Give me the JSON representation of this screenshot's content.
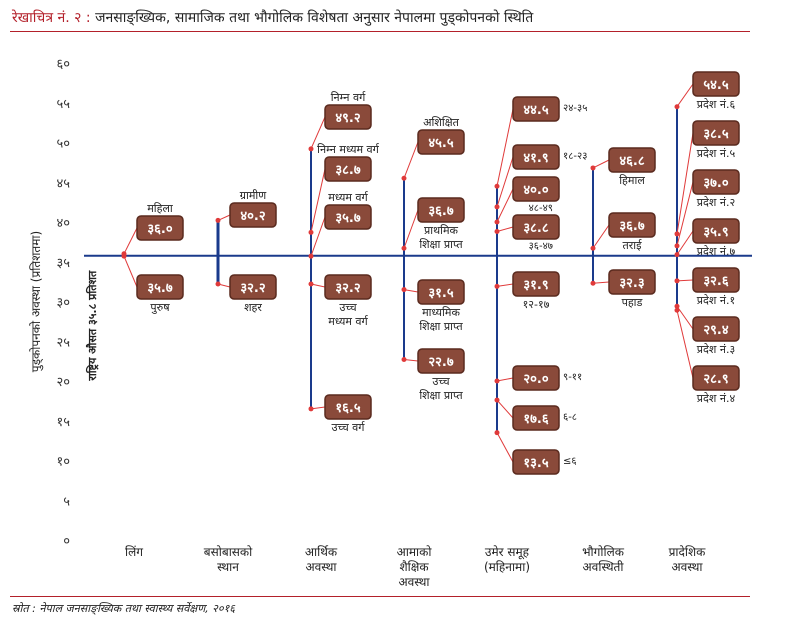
{
  "title": {
    "lead": "रेखाचित्र नं. २ :",
    "text": "जनसाङ्ख्यिक, सामाजिक तथा भौगोलिक विशेषता अनुसार नेपालमा पुड्कोपनको स्थिति"
  },
  "source": "स्रोत : नेपाल जनसाङ्ख्यिक तथा स्वास्थ्य सर्वेक्षण, २०१६",
  "colors": {
    "box": "#8a4a3a",
    "box_border": "#5a2a1e",
    "line": "#1a3a8c",
    "connector": "#e03a3a",
    "rule": "#b3202a"
  },
  "chart_data": {
    "type": "scatter",
    "ylabel": "पुड्कोपनको अवस्था (प्रतिशतमा)",
    "ylim": [
      0,
      60
    ],
    "yticks": [
      {
        "v": 0,
        "label": "०"
      },
      {
        "v": 5,
        "label": "५"
      },
      {
        "v": 10,
        "label": "१०"
      },
      {
        "v": 15,
        "label": "१५"
      },
      {
        "v": 20,
        "label": "२०"
      },
      {
        "v": 25,
        "label": "२५"
      },
      {
        "v": 30,
        "label": "३०"
      },
      {
        "v": 35,
        "label": "३५"
      },
      {
        "v": 40,
        "label": "४०"
      },
      {
        "v": 45,
        "label": "४५"
      },
      {
        "v": 50,
        "label": "५०"
      },
      {
        "v": 55,
        "label": "५५"
      },
      {
        "v": 60,
        "label": "६०"
      }
    ],
    "reference": {
      "value": 35.8,
      "label": "राष्ट्रिय औसत ३५.८ प्रतिशत"
    },
    "categories": [
      {
        "label": [
          "लिंग"
        ],
        "points": [
          {
            "value": 36.0,
            "label": "३६.०",
            "text": [
              "महिला"
            ],
            "place": "above"
          },
          {
            "value": 35.7,
            "label": "३५.७",
            "text": [
              "पुरुष"
            ],
            "place": "below"
          }
        ]
      },
      {
        "label": [
          "बसोबासको",
          "स्थान"
        ],
        "points": [
          {
            "value": 40.2,
            "label": "४०.२",
            "text": [
              "ग्रामीण"
            ],
            "place": "above"
          },
          {
            "value": 32.2,
            "label": "३२.२",
            "text": [
              "शहर"
            ],
            "place": "below"
          }
        ]
      },
      {
        "label": [
          "आर्थिक",
          "अवस्था"
        ],
        "points": [
          {
            "value": 49.2,
            "label": "४९.२",
            "text": [
              "निम्न वर्ग"
            ],
            "place": "above"
          },
          {
            "value": 38.7,
            "label": "३८.७",
            "text": [
              "निम्न मध्यम वर्ग"
            ],
            "place": "above"
          },
          {
            "value": 35.7,
            "label": "३५.७",
            "text": [
              "मध्यम वर्ग"
            ],
            "place": "above"
          },
          {
            "value": 32.2,
            "label": "३२.२",
            "text": [
              "उच्च",
              "मध्यम वर्ग"
            ],
            "place": "below"
          },
          {
            "value": 16.5,
            "label": "१६.५",
            "text": [
              "उच्च वर्ग"
            ],
            "place": "below"
          }
        ]
      },
      {
        "label": [
          "आमाको",
          "शैक्षिक",
          "अवस्था"
        ],
        "points": [
          {
            "value": 45.5,
            "label": "४५.५",
            "text": [
              "अशिक्षित"
            ],
            "place": "above"
          },
          {
            "value": 36.7,
            "label": "३६.७",
            "text": [
              "प्राथमिक",
              "शिक्षा प्राप्त"
            ],
            "place": "below"
          },
          {
            "value": 31.5,
            "label": "३१.५",
            "text": [
              "माध्यमिक",
              "शिक्षा प्राप्त"
            ],
            "place": "below"
          },
          {
            "value": 22.7,
            "label": "२२.७",
            "text": [
              "उच्च",
              "शिक्षा प्राप्त"
            ],
            "place": "below"
          }
        ]
      },
      {
        "label": [
          "उमेर समूह",
          "(महिनामा)"
        ],
        "points": [
          {
            "value": 44.5,
            "label": "४४.५",
            "text": [
              "२४-३५"
            ],
            "place": "right"
          },
          {
            "value": 41.9,
            "label": "४१.९",
            "text": [
              "१८-२३"
            ],
            "place": "right"
          },
          {
            "value": 40.0,
            "label": "४०.०",
            "text": [
              "४८-४९"
            ],
            "place": "right-low"
          },
          {
            "value": 38.8,
            "label": "३८.८",
            "text": [
              "३६-४७"
            ],
            "place": "right-low"
          },
          {
            "value": 31.9,
            "label": "३१.९",
            "text": [
              "१२-१७"
            ],
            "place": "below"
          },
          {
            "value": 20.0,
            "label": "२०.०",
            "text": [
              "९-११"
            ],
            "place": "right"
          },
          {
            "value": 17.6,
            "label": "१७.६",
            "text": [
              "६-८"
            ],
            "place": "right"
          },
          {
            "value": 13.5,
            "label": "१३.५",
            "text": [
              "≤६"
            ],
            "place": "right"
          }
        ]
      },
      {
        "label": [
          "भौगोलिक",
          "अवस्थिती"
        ],
        "points": [
          {
            "value": 46.8,
            "label": "४६.८",
            "text": [
              "हिमाल"
            ],
            "place": "below"
          },
          {
            "value": 36.7,
            "label": "३६.७",
            "text": [
              "तराई"
            ],
            "place": "below"
          },
          {
            "value": 32.3,
            "label": "३२.३",
            "text": [
              "पहाड"
            ],
            "place": "below"
          }
        ]
      },
      {
        "label": [
          "प्रादेशिक",
          "अवस्था"
        ],
        "points": [
          {
            "value": 54.5,
            "label": "५४.५",
            "text": [
              "प्रदेश नं.६"
            ],
            "place": "below"
          },
          {
            "value": 38.5,
            "label": "३८.५",
            "text": [
              "प्रदेश नं.५"
            ],
            "place": "below"
          },
          {
            "value": 37.0,
            "label": "३७.०",
            "text": [
              "प्रदेश नं.२"
            ],
            "place": "below"
          },
          {
            "value": 35.9,
            "label": "३५.९",
            "text": [
              "प्रदेश नं.७"
            ],
            "place": "below"
          },
          {
            "value": 32.6,
            "label": "३२.६",
            "text": [
              "प्रदेश नं.१"
            ],
            "place": "below"
          },
          {
            "value": 29.4,
            "label": "२९.४",
            "text": [
              "प्रदेश नं.३"
            ],
            "place": "below"
          },
          {
            "value": 28.9,
            "label": "२८.९",
            "text": [
              "प्रदेश नं.४"
            ],
            "place": "below"
          }
        ]
      }
    ]
  }
}
